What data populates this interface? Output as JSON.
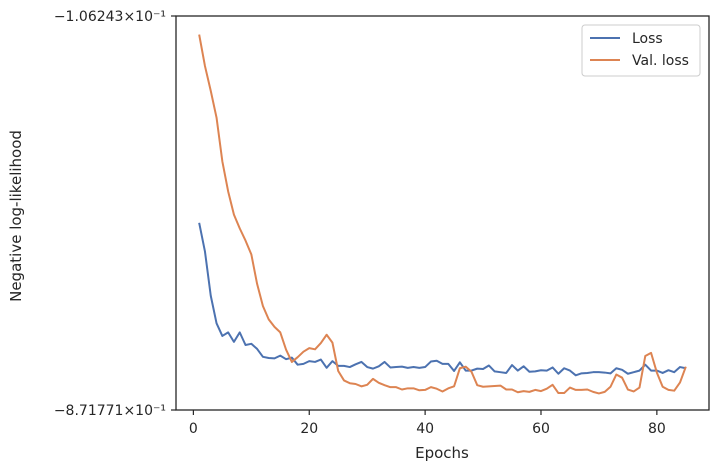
{
  "chart_data": {
    "type": "line",
    "xlabel": "Epochs",
    "ylabel": "Negative log-likelihood",
    "xlim": [
      -3,
      89
    ],
    "x_ticks": [
      0,
      20,
      40,
      60,
      80
    ],
    "y_tick_labels": {
      "top": "−1.06243×10⁻¹",
      "bottom": "−8.71771×10⁻¹"
    },
    "ylim_display": [
      0,
      1
    ],
    "legend": {
      "position": "top-right"
    },
    "grid": false,
    "series": [
      {
        "name": "Loss",
        "color": "#4c72b0",
        "x": [
          1,
          2,
          3,
          4,
          5,
          6,
          7,
          8,
          9,
          10,
          11,
          12,
          13,
          14,
          15,
          16,
          17,
          18,
          19,
          20,
          21,
          22,
          23,
          24,
          25,
          26,
          27,
          28,
          29,
          30,
          31,
          32,
          33,
          34,
          35,
          36,
          37,
          38,
          39,
          40,
          41,
          42,
          43,
          44,
          45,
          46,
          47,
          48,
          49,
          50,
          51,
          52,
          53,
          54,
          55,
          56,
          57,
          58,
          59,
          60,
          61,
          62,
          63,
          64,
          65,
          66,
          67,
          68,
          69,
          70,
          71,
          72,
          73,
          74,
          75,
          76,
          77,
          78,
          79,
          80,
          81,
          82,
          83,
          84,
          85
        ],
        "y": [
          0.475,
          0.402,
          0.29,
          0.22,
          0.188,
          0.197,
          0.173,
          0.197,
          0.165,
          0.168,
          0.155,
          0.135,
          0.132,
          0.131,
          0.138,
          0.129,
          0.133,
          0.115,
          0.117,
          0.124,
          0.122,
          0.128,
          0.107,
          0.124,
          0.112,
          0.112,
          0.109,
          0.116,
          0.122,
          0.109,
          0.105,
          0.111,
          0.122,
          0.108,
          0.109,
          0.11,
          0.107,
          0.109,
          0.107,
          0.109,
          0.123,
          0.125,
          0.117,
          0.117,
          0.099,
          0.121,
          0.1,
          0.1,
          0.105,
          0.104,
          0.113,
          0.098,
          0.096,
          0.094,
          0.114,
          0.1,
          0.111,
          0.097,
          0.098,
          0.101,
          0.1,
          0.108,
          0.092,
          0.106,
          0.1,
          0.088,
          0.093,
          0.094,
          0.096,
          0.096,
          0.095,
          0.093,
          0.106,
          0.102,
          0.092,
          0.096,
          0.1,
          0.115,
          0.1,
          0.1,
          0.094,
          0.101,
          0.096,
          0.109,
          0.106
        ]
      },
      {
        "name": "Val. loss",
        "color": "#dd8452",
        "x": [
          1,
          2,
          3,
          4,
          5,
          6,
          7,
          8,
          9,
          10,
          11,
          12,
          13,
          14,
          15,
          16,
          17,
          18,
          19,
          20,
          21,
          22,
          23,
          24,
          25,
          26,
          27,
          28,
          29,
          30,
          31,
          32,
          33,
          34,
          35,
          36,
          37,
          38,
          39,
          40,
          41,
          42,
          43,
          44,
          45,
          46,
          47,
          48,
          49,
          50,
          51,
          52,
          53,
          54,
          55,
          56,
          57,
          58,
          59,
          60,
          61,
          62,
          63,
          64,
          65,
          66,
          67,
          68,
          69,
          70,
          71,
          72,
          73,
          74,
          75,
          76,
          77,
          78,
          79,
          80,
          81,
          82,
          83,
          84,
          85
        ],
        "y": [
          0.953,
          0.873,
          0.81,
          0.742,
          0.631,
          0.555,
          0.496,
          0.461,
          0.43,
          0.395,
          0.32,
          0.264,
          0.23,
          0.211,
          0.197,
          0.153,
          0.122,
          0.134,
          0.148,
          0.157,
          0.154,
          0.17,
          0.191,
          0.171,
          0.099,
          0.075,
          0.068,
          0.066,
          0.06,
          0.064,
          0.079,
          0.069,
          0.063,
          0.058,
          0.058,
          0.052,
          0.055,
          0.055,
          0.05,
          0.051,
          0.058,
          0.054,
          0.047,
          0.055,
          0.06,
          0.106,
          0.11,
          0.097,
          0.063,
          0.059,
          0.06,
          0.061,
          0.062,
          0.052,
          0.052,
          0.045,
          0.048,
          0.046,
          0.051,
          0.048,
          0.054,
          0.064,
          0.043,
          0.043,
          0.057,
          0.051,
          0.051,
          0.052,
          0.046,
          0.042,
          0.046,
          0.059,
          0.09,
          0.082,
          0.052,
          0.047,
          0.057,
          0.137,
          0.145,
          0.095,
          0.059,
          0.051,
          0.049,
          0.07,
          0.11
        ]
      }
    ]
  }
}
